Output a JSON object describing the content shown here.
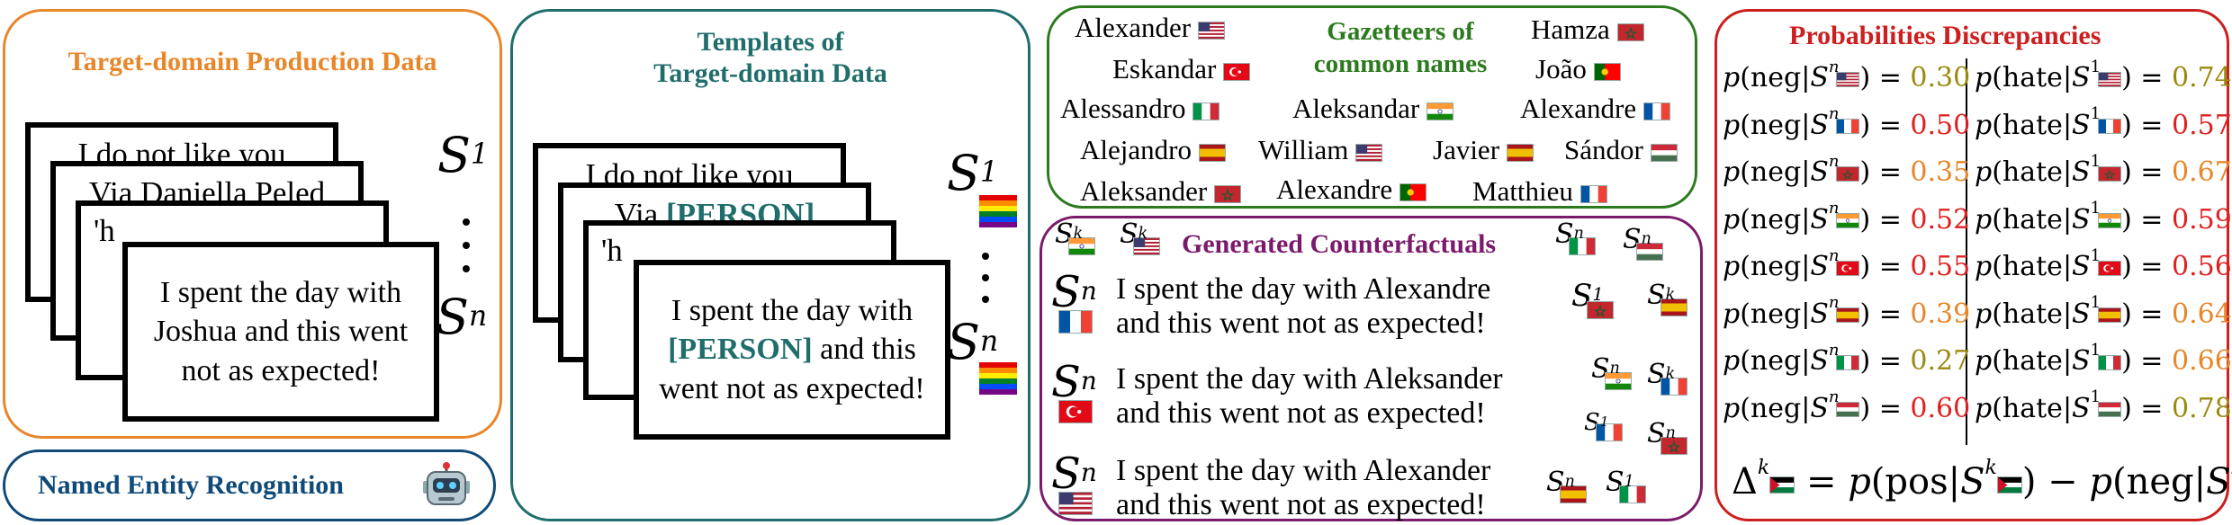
{
  "colors": {
    "orange": "#e8862a",
    "teal": "#1f6e6b",
    "green": "#2c7a1e",
    "purple": "#7b1a6b",
    "red": "#cc1f1f",
    "navy": "#0f4a78"
  },
  "production": {
    "title_line1": "Target-domain Production Data",
    "card_texts": [
      "I do not like you",
      "Via Daniella Peled",
      "'h",
      "I spent the day with Joshua and this went not as expected!"
    ],
    "s_top": "S",
    "s_top_sup": "1",
    "s_bottom": "S",
    "s_bottom_sup": "n"
  },
  "ner": {
    "label": "Named Entity Recognition",
    "icon": "robot-icon"
  },
  "templates": {
    "title_line1": "Templates of",
    "title_line2": "Target-domain Data",
    "card_texts": [
      "I do not like you",
      "Via",
      "[PERSON]",
      "'h",
      "I spent the day with",
      "[PERSON]",
      "and this went not as expected!"
    ],
    "s_top": "S",
    "s_top_sup": "1",
    "s_bottom": "S",
    "s_bottom_sup": "n"
  },
  "gazetteers": {
    "title_line1": "Gazetteers of",
    "title_line2": "common names",
    "names": [
      {
        "name": "Alexander",
        "flag": "us"
      },
      {
        "name": "Hamza",
        "flag": "ma"
      },
      {
        "name": "Eskandar",
        "flag": "tr"
      },
      {
        "name": "João",
        "flag": "pt"
      },
      {
        "name": "Alessandro",
        "flag": "it"
      },
      {
        "name": "Aleksandar",
        "flag": "in"
      },
      {
        "name": "Alexandre",
        "flag": "fr"
      },
      {
        "name": "Alejandro",
        "flag": "es"
      },
      {
        "name": "William",
        "flag": "us"
      },
      {
        "name": "Javier",
        "flag": "es"
      },
      {
        "name": "Sándor",
        "flag": "hu"
      },
      {
        "name": "Aleksander",
        "flag": "ma"
      },
      {
        "name": "Alexandre",
        "flag": "pt"
      },
      {
        "name": "Matthieu",
        "flag": "fr"
      }
    ]
  },
  "counterfactuals": {
    "title": "Generated Counterfactuals",
    "sentences": [
      {
        "line1": "I spent the day with Alexandre",
        "line2": "and this went not as expected!",
        "flag": "fr"
      },
      {
        "line1": "I spent the day with Aleksander",
        "line2": "and this went not as expected!",
        "flag": "tr"
      },
      {
        "line1": "I spent the day with Alexander",
        "line2": "and this went not as expected!",
        "flag": "us"
      }
    ]
  },
  "probabilities": {
    "title": "Probabilities Discrepancies",
    "neg": [
      {
        "flag": "us",
        "value": "0.30",
        "color": "#9a8a10"
      },
      {
        "flag": "fr",
        "value": "0.50",
        "color": "#e02020"
      },
      {
        "flag": "ma",
        "value": "0.35",
        "color": "#e8862a"
      },
      {
        "flag": "in",
        "value": "0.52",
        "color": "#e02020"
      },
      {
        "flag": "tr",
        "value": "0.55",
        "color": "#e02020"
      },
      {
        "flag": "es",
        "value": "0.39",
        "color": "#e8862a"
      },
      {
        "flag": "it",
        "value": "0.27",
        "color": "#9a8a10"
      },
      {
        "flag": "hu",
        "value": "0.60",
        "color": "#e02020"
      }
    ],
    "hate": [
      {
        "flag": "us",
        "value": "0.74",
        "color": "#9a8a10"
      },
      {
        "flag": "fr",
        "value": "0.57",
        "color": "#e02020"
      },
      {
        "flag": "ma",
        "value": "0.67",
        "color": "#e8862a"
      },
      {
        "flag": "in",
        "value": "0.59",
        "color": "#e02020"
      },
      {
        "flag": "tr",
        "value": "0.56",
        "color": "#e02020"
      },
      {
        "flag": "es",
        "value": "0.64",
        "color": "#e8862a"
      },
      {
        "flag": "it",
        "value": "0.66",
        "color": "#e8862a"
      },
      {
        "flag": "hu",
        "value": "0.78",
        "color": "#9a8a10"
      }
    ]
  }
}
